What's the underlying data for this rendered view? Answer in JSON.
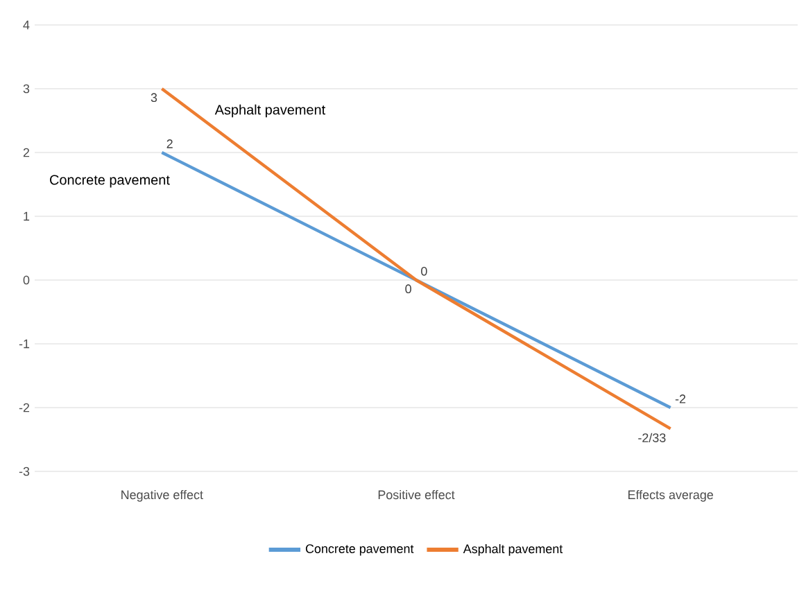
{
  "chart_data": {
    "type": "line",
    "categories": [
      "Negative effect",
      "Positive effect",
      "Effects average"
    ],
    "series": [
      {
        "name": "Concrete pavement",
        "color": "#5b9bd5",
        "values": [
          2,
          0,
          -2
        ],
        "value_labels": [
          "2",
          "0",
          "-2"
        ]
      },
      {
        "name": "Asphalt pavement",
        "color": "#ed7d31",
        "values": [
          3,
          0,
          -2.33
        ],
        "value_labels": [
          "3",
          "0",
          "-2/33"
        ]
      }
    ],
    "annotations": [
      "Concrete pavement",
      "Asphalt pavement"
    ],
    "ylim": [
      -3,
      4
    ],
    "yticks": [
      -3,
      -2,
      -1,
      0,
      1,
      2,
      3,
      4
    ],
    "grid": "y",
    "legend": "bottom",
    "marker": "none",
    "line_style": "solid"
  }
}
